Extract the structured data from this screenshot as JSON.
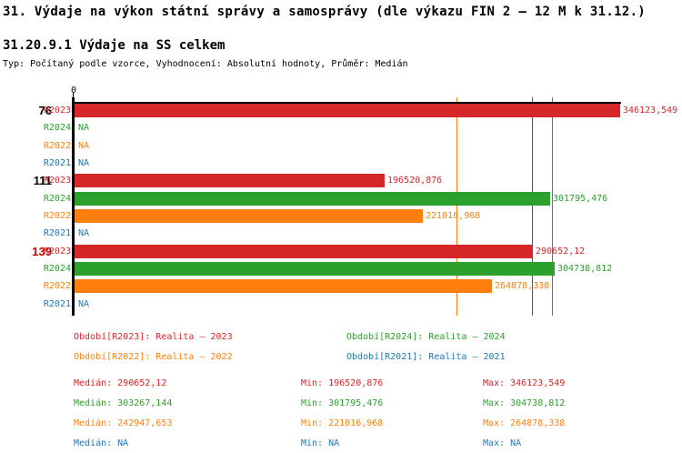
{
  "title": "31. Výdaje na výkon státní správy a samosprávy (dle výkazu FIN 2 – 12 M k 31.12.)",
  "subtitle": "31.20.9.1 Výdaje na SS celkem",
  "meta": "Typ: Počítaný podle vzorce, Vyhodnocení: Absolutní hodnoty, Průměr: Medián",
  "colors": {
    "R2023": "#d62728",
    "R2024": "#2ca02c",
    "R2022": "#ff7f0e",
    "R2021": "#1f77b4",
    "axis": "#000000",
    "group_label_highlight": "#cc0000"
  },
  "chart_data": {
    "type": "bar",
    "orientation": "horizontal",
    "x_axis_tick_label": "0",
    "xlim": [
      0,
      346123.549
    ],
    "grid": false,
    "series": [
      "R2023",
      "R2024",
      "R2022",
      "R2021"
    ],
    "na_label": "NA",
    "groups": [
      {
        "label": "76",
        "label_color": "#000000",
        "values": {
          "R2023": 346123.549,
          "R2024": null,
          "R2022": null,
          "R2021": null
        },
        "displays": {
          "R2023": "346123,549",
          "R2024": "NA",
          "R2022": "NA",
          "R2021": "NA"
        }
      },
      {
        "label": "111",
        "label_color": "#000000",
        "values": {
          "R2023": 196520.876,
          "R2024": 301795.476,
          "R2022": 221016.968,
          "R2021": null
        },
        "displays": {
          "R2023": "196520,876",
          "R2024": "301795,476",
          "R2022": "221016,968",
          "R2021": "NA"
        }
      },
      {
        "label": "139",
        "label_color": "#cc0000",
        "values": {
          "R2023": 290652.12,
          "R2024": 304738.812,
          "R2022": 264878.338,
          "R2021": null
        },
        "displays": {
          "R2023": "290652,12",
          "R2024": "304738,812",
          "R2022": "264878,338",
          "R2021": "NA"
        }
      }
    ],
    "median_lines": [
      {
        "name": "median-R2022",
        "value": 242947.653,
        "color": "#ff7f0e"
      },
      {
        "name": "median-R2023",
        "value": 290652.12,
        "color": "#c62828"
      },
      {
        "name": "median-R2024",
        "value": 303267.144,
        "color": "#2ca02c"
      }
    ]
  },
  "legend": {
    "items": [
      {
        "text": "Období[R2023]: Realita – 2023",
        "color": "#d62728"
      },
      {
        "text": "Období[R2024]: Realita – 2024",
        "color": "#2ca02c"
      },
      {
        "text": "Období[R2022]: Realita – 2022",
        "color": "#ff7f0e"
      },
      {
        "text": "Období[R2021]: Realita – 2021",
        "color": "#1f77b4"
      }
    ]
  },
  "stats": {
    "rows": [
      {
        "color": "#d62728",
        "median": "Medián: 290652,12",
        "min": "Min: 196520,876",
        "max": "Max: 346123,549"
      },
      {
        "color": "#2ca02c",
        "median": "Medián: 303267,144",
        "min": "Min: 301795,476",
        "max": "Max: 304738,812"
      },
      {
        "color": "#ff7f0e",
        "median": "Medián: 242947,653",
        "min": "Min: 221016,968",
        "max": "Max: 264878,338"
      },
      {
        "color": "#1f77b4",
        "median": "Medián: NA",
        "min": "Min: NA",
        "max": "Max: NA"
      }
    ]
  }
}
